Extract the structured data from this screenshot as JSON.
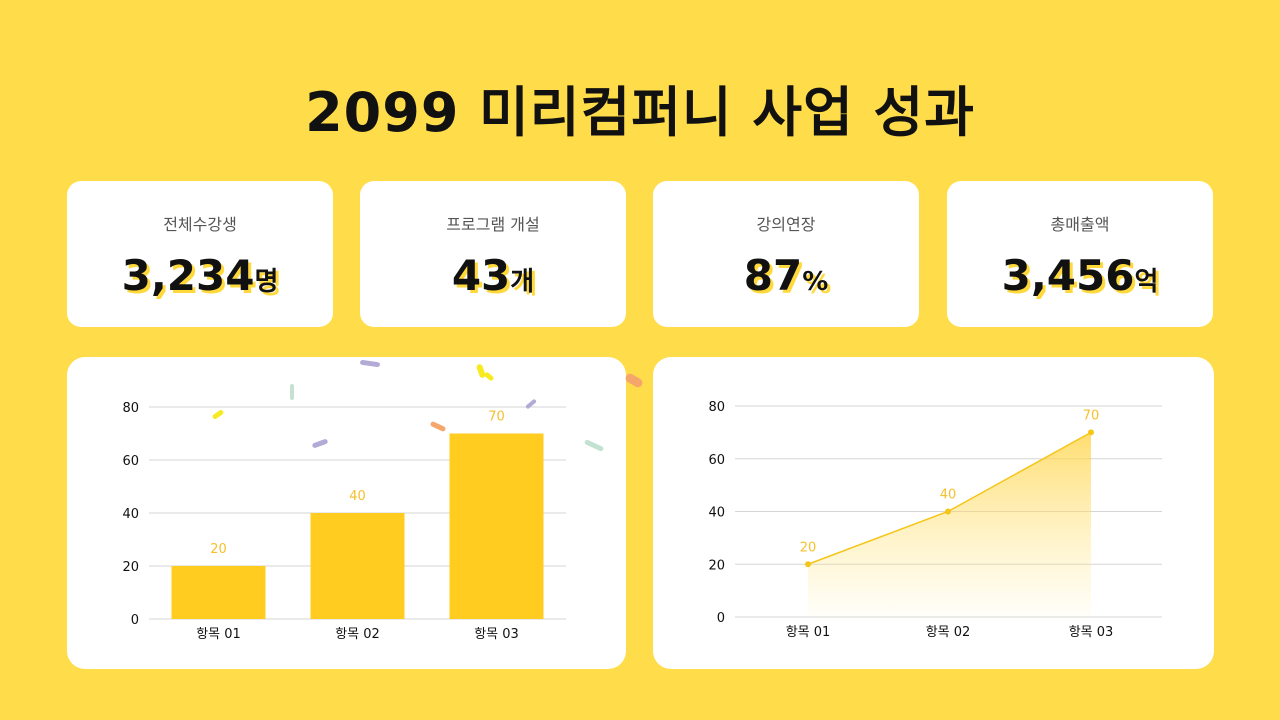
{
  "title": "2099 미리컴퍼니 사업 성과",
  "stats": [
    {
      "label": "전체수강생",
      "value": "3,234",
      "unit": "명"
    },
    {
      "label": "프로그램 개설",
      "value": "43",
      "unit": "개"
    },
    {
      "label": "강의연장",
      "value": "87",
      "unit": "%"
    },
    {
      "label": "총매출액",
      "value": "3,456",
      "unit": "억"
    }
  ],
  "colors": {
    "background": "#FFDC4A",
    "accent": "#FFCC1F",
    "value_label": "#F5C02E",
    "card": "#FFFFFF"
  },
  "chart_data": [
    {
      "type": "bar",
      "title": "",
      "categories": [
        "항목 01",
        "항목 02",
        "항목 03"
      ],
      "values": [
        20,
        40,
        70
      ],
      "xlabel": "",
      "ylabel": "",
      "ylim": [
        0,
        80
      ],
      "yticks": [
        0,
        20,
        40,
        60,
        80
      ],
      "grid": true,
      "data_labels": [
        "20",
        "40",
        "70"
      ],
      "legend": null
    },
    {
      "type": "area",
      "title": "",
      "categories": [
        "항목 01",
        "항목 02",
        "항목 03"
      ],
      "values": [
        20,
        40,
        70
      ],
      "xlabel": "",
      "ylabel": "",
      "ylim": [
        0,
        80
      ],
      "yticks": [
        0,
        20,
        40,
        60,
        80
      ],
      "grid": true,
      "data_labels": [
        "20",
        "40",
        "70"
      ],
      "legend": null
    }
  ]
}
